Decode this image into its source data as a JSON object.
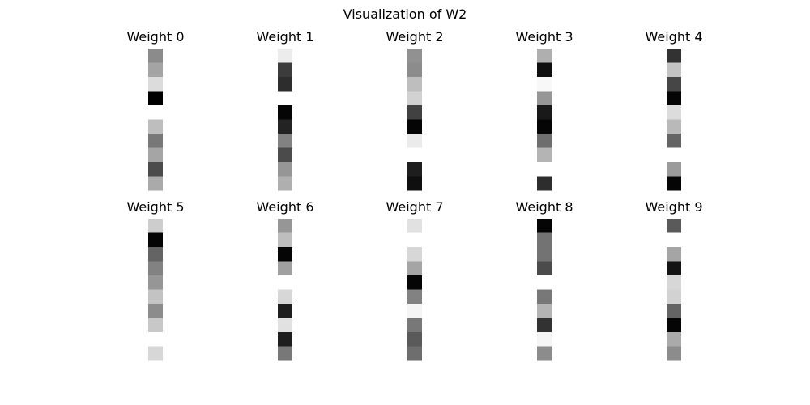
{
  "figure": {
    "title": "Visualization of W2"
  },
  "chart_data": {
    "type": "heatmap",
    "colormap": "gray",
    "vmin": 0,
    "vmax": 255,
    "grid": false,
    "axes_visible": false,
    "panels": [
      {
        "title": "Weight 0",
        "values": [
          139,
          164,
          220,
          0,
          255,
          190,
          120,
          165,
          75,
          170
        ]
      },
      {
        "title": "Weight 1",
        "values": [
          236,
          60,
          45,
          255,
          5,
          35,
          130,
          75,
          150,
          175
        ]
      },
      {
        "title": "Weight 2",
        "values": [
          145,
          140,
          190,
          210,
          65,
          5,
          235,
          255,
          30,
          15
        ]
      },
      {
        "title": "Weight 3",
        "values": [
          175,
          15,
          248,
          150,
          25,
          5,
          110,
          180,
          255,
          45
        ]
      },
      {
        "title": "Weight 4",
        "values": [
          50,
          195,
          70,
          5,
          220,
          185,
          100,
          255,
          155,
          5
        ]
      },
      {
        "title": "Weight 5",
        "values": [
          205,
          5,
          100,
          130,
          150,
          195,
          140,
          200,
          255,
          215
        ]
      },
      {
        "title": "Weight 6",
        "values": [
          150,
          190,
          5,
          160,
          255,
          215,
          30,
          225,
          30,
          120
        ]
      },
      {
        "title": "Weight 7",
        "values": [
          225,
          255,
          215,
          165,
          5,
          130,
          245,
          120,
          90,
          110
        ]
      },
      {
        "title": "Weight 8",
        "values": [
          5,
          115,
          115,
          75,
          255,
          120,
          180,
          50,
          245,
          140
        ]
      },
      {
        "title": "Weight 9",
        "values": [
          90,
          255,
          165,
          20,
          215,
          210,
          100,
          5,
          170,
          140
        ]
      }
    ]
  }
}
